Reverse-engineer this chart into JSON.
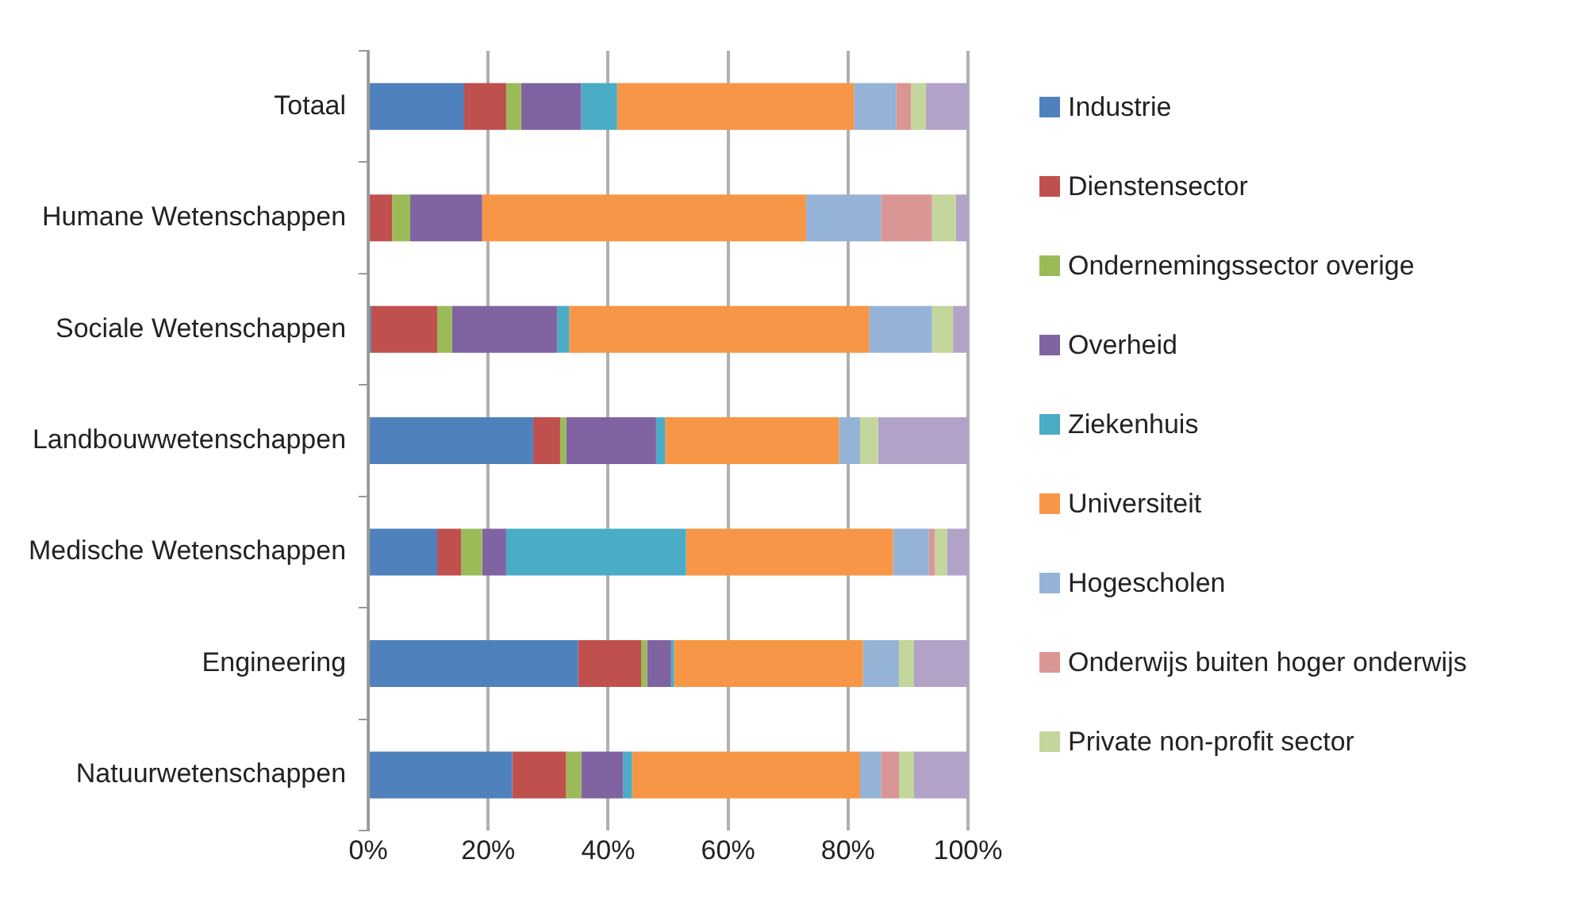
{
  "chart_data": {
    "type": "bar",
    "orientation": "horizontal",
    "stacked": true,
    "categories": [
      "Totaal",
      "Humane Wetenschappen",
      "Sociale Wetenschappen",
      "Landbouwwetenschappen",
      "Medische Wetenschappen",
      "Engineering",
      "Natuurwetenschappen"
    ],
    "series": [
      {
        "name": "Industrie",
        "color": "#4f81bd",
        "values": [
          16,
          0,
          0.5,
          27.5,
          11.5,
          35,
          24
        ]
      },
      {
        "name": "Dienstensector",
        "color": "#c0504d",
        "values": [
          7,
          4,
          11,
          4.5,
          4,
          10.5,
          9
        ]
      },
      {
        "name": "Ondernemingssector overige",
        "color": "#9bbb59",
        "values": [
          2.5,
          3,
          2.5,
          1,
          3.5,
          1,
          2.5
        ]
      },
      {
        "name": "Overheid",
        "color": "#8064a2",
        "values": [
          10,
          12,
          17.5,
          15,
          4,
          4,
          7
        ]
      },
      {
        "name": "Ziekenhuis",
        "color": "#4bacc6",
        "values": [
          6,
          0,
          2,
          1.5,
          30,
          0.5,
          1.5
        ]
      },
      {
        "name": "Universiteit",
        "color": "#f79646",
        "values": [
          39.5,
          54,
          50,
          29,
          34.5,
          31.5,
          38
        ]
      },
      {
        "name": "Hogescholen",
        "color": "#95b3d7",
        "values": [
          7,
          12.5,
          10.5,
          3.5,
          6,
          6,
          3.5
        ]
      },
      {
        "name": "Onderwijs buiten hoger onderwijs",
        "color": "#d99694",
        "values": [
          2.5,
          8.5,
          0,
          0,
          1,
          0,
          3
        ]
      },
      {
        "name": "Private non-profit sector",
        "color": "#c3d69b",
        "values": [
          2.5,
          4,
          3.5,
          3,
          2,
          2.5,
          2.5
        ]
      },
      {
        "color": "#b2a2c7",
        "values": [
          7,
          2,
          2.5,
          15,
          3.5,
          9,
          9
        ]
      }
    ],
    "xlim": [
      0,
      100
    ],
    "xticks": [
      {
        "value": 0,
        "label": "0%"
      },
      {
        "value": 20,
        "label": "20%"
      },
      {
        "value": 40,
        "label": "40%"
      },
      {
        "value": 60,
        "label": "60%"
      },
      {
        "value": 80,
        "label": "80%"
      },
      {
        "value": 100,
        "label": "100%"
      }
    ],
    "grid": "x",
    "legend": "right"
  }
}
